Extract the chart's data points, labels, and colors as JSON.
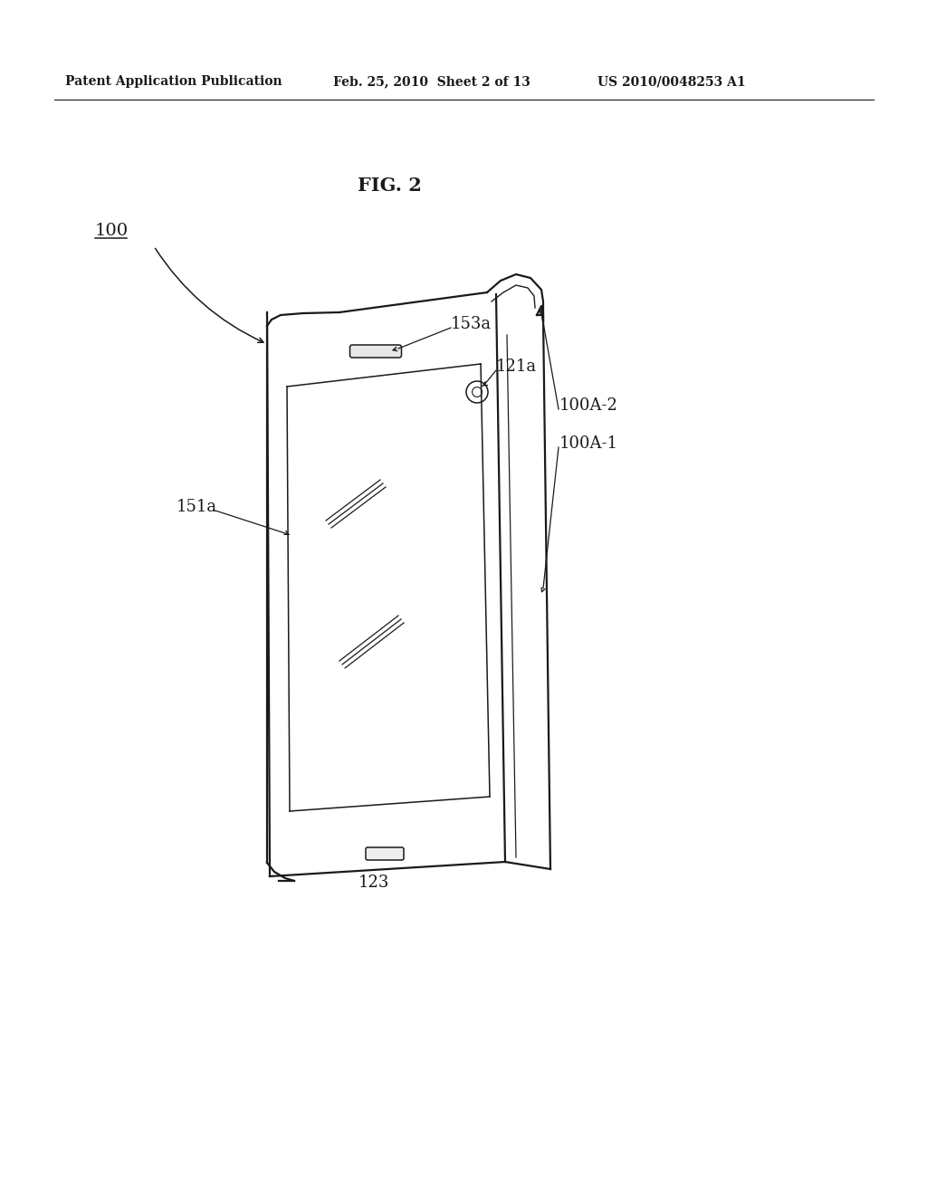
{
  "title": "FIG. 2",
  "header_left": "Patent Application Publication",
  "header_center": "Feb. 25, 2010  Sheet 2 of 13",
  "header_right": "US 2010/0048253 A1",
  "background_color": "#ffffff",
  "line_color": "#1a1a1a",
  "figsize": [
    10.24,
    13.2
  ],
  "dpi": 100
}
